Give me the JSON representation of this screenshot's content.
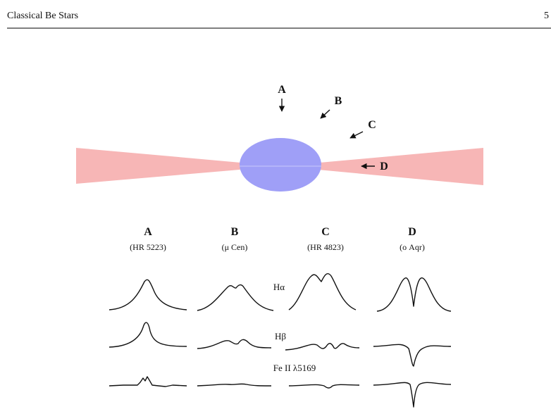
{
  "header": {
    "title": "Classical Be Stars",
    "page": "5"
  },
  "figure": {
    "viewing_labels": [
      "A",
      "B",
      "C",
      "D"
    ],
    "columns": [
      {
        "label": "A",
        "star": "(HR 5223)"
      },
      {
        "label": "B",
        "star": "(μ Cen)"
      },
      {
        "label": "C",
        "star": "(HR 4823)"
      },
      {
        "label": "D",
        "star": "(ο Aqr)"
      }
    ],
    "lines": [
      "Hα",
      "Hβ",
      "Fe II λ5169"
    ]
  }
}
